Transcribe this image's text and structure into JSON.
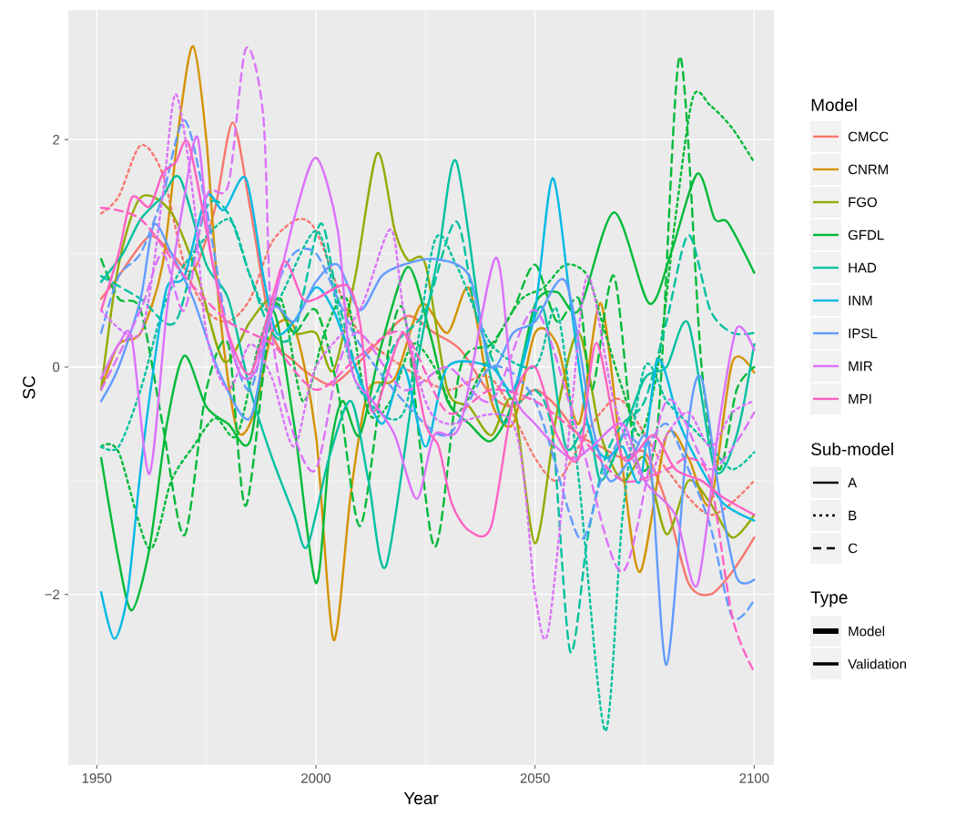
{
  "chart_data": {
    "type": "line",
    "xlabel": "Year",
    "ylabel": "SC",
    "legend_title": "Model",
    "legend": "right",
    "grid": true,
    "xlim": [
      1943.5,
      2104.5
    ],
    "ylim": [
      -3.5,
      3.14
    ],
    "xticks": [
      1950,
      2000,
      2050,
      2100
    ],
    "yticks": [
      {
        "value": -2,
        "label": "−2"
      },
      0,
      2
    ],
    "annotations": [
      "Sub-model",
      "A",
      "B",
      "C",
      "Type",
      "Model",
      "Validation"
    ],
    "series": [
      {
        "name": "CMCC",
        "color": "#F8766D",
        "line_style": "solid",
        "x": [
          1951,
          1955,
          1962,
          1967,
          1972,
          1977,
          1981,
          1985,
          1990,
          1995,
          2000,
          2004,
          2010,
          2015,
          2021,
          2027,
          2033,
          2040,
          2045,
          2050,
          2055,
          2060,
          2065,
          2070,
          2075,
          2080,
          2085,
          2090,
          2095,
          2100
        ],
        "values": [
          0.6,
          0.8,
          1.15,
          1.0,
          0.85,
          1.4,
          2.15,
          1.4,
          0.3,
          0.05,
          -0.1,
          -0.15,
          0.05,
          0.25,
          0.45,
          0.3,
          0.15,
          -0.25,
          -0.35,
          -0.2,
          -0.35,
          -0.6,
          -0.7,
          -0.8,
          -0.75,
          -1.2,
          -1.9,
          -2.0,
          -1.8,
          -1.5
        ]
      },
      {
        "color": "#F8766D",
        "line_style": "dotted",
        "x": [
          1951,
          1955,
          1960,
          1965,
          1970,
          1975,
          1980,
          1985,
          1990,
          1996,
          2000,
          2005,
          2010,
          2020,
          2030,
          2040,
          2050,
          2055,
          2060,
          2065,
          2070,
          2080,
          2090,
          2100
        ],
        "values": [
          1.35,
          1.5,
          1.95,
          1.7,
          0.9,
          0.5,
          0.4,
          0.6,
          1.1,
          1.3,
          1.2,
          0.7,
          0.3,
          0.0,
          -0.2,
          -0.1,
          -0.8,
          -1.0,
          -0.7,
          -0.4,
          -0.3,
          -0.9,
          -1.3,
          -1.0
        ]
      },
      {
        "name": "CNRM",
        "color": "#D39200",
        "line_style": "solid",
        "x": [
          1951,
          1955,
          1960,
          1965,
          1969,
          1972,
          1975,
          1978,
          1982,
          1986,
          1990,
          1995,
          2000,
          2004,
          2008,
          2012,
          2018,
          2024,
          2030,
          2035,
          2040,
          2045,
          2050,
          2055,
          2060,
          2065,
          2070,
          2074,
          2080,
          2085,
          2090,
          2095,
          2100
        ],
        "values": [
          -0.2,
          0.2,
          0.3,
          0.9,
          2.2,
          2.82,
          2.0,
          0.5,
          -0.55,
          -0.4,
          0.3,
          0.35,
          -0.6,
          -2.4,
          -1.1,
          -0.2,
          -0.1,
          0.55,
          0.3,
          0.69,
          -0.3,
          -0.5,
          0.3,
          0.2,
          -0.5,
          0.56,
          -0.9,
          -1.8,
          -0.6,
          -0.8,
          -1.2,
          0.04,
          -0.05
        ]
      },
      {
        "name": "FGO",
        "color": "#93AA00",
        "line_style": "solid",
        "x": [
          1951,
          1955,
          1960,
          1967,
          1973,
          1979,
          1985,
          1990,
          1995,
          2000,
          2004,
          2009,
          2014,
          2018,
          2021,
          2025,
          2030,
          2035,
          2040,
          2045,
          2050,
          2055,
          2060,
          2065,
          2070,
          2075,
          2080,
          2085,
          2090,
          2095,
          2100
        ],
        "values": [
          -0.2,
          0.9,
          1.49,
          1.36,
          0.8,
          0.05,
          0.4,
          0.6,
          0.3,
          0.3,
          -0.03,
          0.8,
          1.88,
          1.2,
          0.94,
          0.9,
          -0.2,
          -0.35,
          -0.6,
          -0.3,
          -1.55,
          -0.4,
          0.3,
          -0.6,
          -1.0,
          -0.8,
          -1.47,
          -1.0,
          -1.2,
          -1.5,
          -1.3
        ]
      },
      {
        "name": "GFDL",
        "color": "#00BA38",
        "line_style": "solid",
        "x": [
          1951,
          1955,
          1958,
          1962,
          1966,
          1970,
          1975,
          1980,
          1985,
          1990,
          1995,
          2000,
          2003,
          2006,
          2010,
          2015,
          2021,
          2026,
          2030,
          2035,
          2040,
          2045,
          2050,
          2055,
          2060,
          2068,
          2076,
          2081,
          2087,
          2091,
          2094,
          2100
        ],
        "values": [
          -0.8,
          -1.7,
          -2.14,
          -1.6,
          -0.5,
          0.1,
          -0.35,
          -0.5,
          -0.65,
          0.5,
          -0.5,
          -1.9,
          -0.8,
          -0.3,
          -0.6,
          0.2,
          0.88,
          0.3,
          -0.3,
          -0.5,
          -0.65,
          -0.3,
          0.55,
          0.66,
          0.5,
          1.36,
          0.56,
          1.0,
          1.7,
          1.3,
          1.27,
          0.83
        ]
      },
      {
        "color": "#00BA38",
        "line_style": "dotted",
        "x": [
          1951,
          1955,
          1962,
          1967,
          1972,
          1977,
          1982,
          1987,
          1992,
          1997,
          2002,
          2007,
          2012,
          2017,
          2022,
          2027,
          2032,
          2037,
          2042,
          2047,
          2052,
          2057,
          2062,
          2066,
          2070,
          2074,
          2078,
          2082,
          2086,
          2090,
          2095,
          2100
        ],
        "values": [
          -0.7,
          -0.75,
          -1.6,
          -1.0,
          -0.7,
          -0.45,
          -0.6,
          0.2,
          0.6,
          -0.3,
          0.3,
          0.6,
          -0.4,
          -0.3,
          0.2,
          0.0,
          -0.4,
          -0.1,
          0.3,
          0.6,
          0.7,
          0.9,
          0.8,
          0.3,
          -0.2,
          -0.6,
          0.0,
          1.3,
          2.37,
          2.3,
          2.1,
          1.8
        ]
      },
      {
        "color": "#00BA38",
        "line_style": "dashed",
        "x": [
          1951,
          1955,
          1960,
          1965,
          1970,
          1975,
          1980,
          1984,
          1990,
          1995,
          2000,
          2005,
          2010,
          2015,
          2020,
          2027,
          2033,
          2040,
          2045,
          2050,
          2055,
          2060,
          2063,
          2068,
          2073,
          2078,
          2083,
          2088,
          2092,
          2096,
          2100
        ],
        "values": [
          0.95,
          0.6,
          0.5,
          -0.5,
          -1.48,
          -0.2,
          0.2,
          -1.22,
          0.5,
          0.3,
          0.5,
          -0.2,
          -1.4,
          -0.2,
          0.5,
          -1.58,
          0.0,
          0.2,
          0.5,
          0.9,
          0.4,
          0.6,
          -0.2,
          0.8,
          -0.8,
          -0.5,
          2.73,
          0.0,
          -0.9,
          -0.2,
          0.0
        ]
      },
      {
        "name": "HAD",
        "color": "#00C19F",
        "line_style": "solid",
        "x": [
          1951,
          1956,
          1960,
          1965,
          1969,
          1975,
          1980,
          1985,
          1990,
          1995,
          1998,
          2003,
          2008,
          2012,
          2016,
          2023,
          2028,
          2032,
          2038,
          2043,
          2048,
          2052,
          2057,
          2062,
          2065,
          2070,
          2075,
          2080,
          2085,
          2091,
          2096,
          2100
        ],
        "values": [
          0.75,
          1.0,
          1.3,
          1.5,
          1.66,
          0.9,
          0.6,
          -0.2,
          -0.8,
          -1.3,
          -1.58,
          -0.8,
          -0.3,
          -1.0,
          -1.75,
          0.0,
          1.0,
          1.81,
          0.3,
          -0.5,
          0.2,
          0.5,
          -0.7,
          -0.5,
          -1.0,
          -0.6,
          -0.1,
          0.0,
          0.38,
          -0.9,
          -0.6,
          0.2
        ]
      },
      {
        "color": "#00C19F",
        "line_style": "dotted",
        "x": [
          1951,
          1955,
          1960,
          1965,
          1970,
          1980,
          1985,
          1990,
          2000,
          2005,
          2010,
          2020,
          2027,
          2032,
          2040,
          2050,
          2055,
          2060,
          2066,
          2070,
          2075,
          2080,
          2085,
          2090,
          2095,
          2100
        ],
        "values": [
          -0.7,
          -0.7,
          -0.2,
          0.5,
          0.9,
          1.3,
          0.8,
          0.5,
          1.2,
          0.5,
          -0.2,
          -0.4,
          1.1,
          0.9,
          0.2,
          0.0,
          0.5,
          -1.0,
          -3.2,
          -1.3,
          0.0,
          -0.3,
          -0.5,
          -0.7,
          -0.9,
          -0.75
        ]
      },
      {
        "color": "#00C19F",
        "line_style": "dashed",
        "x": [
          1951,
          1960,
          1968,
          1975,
          1980,
          1985,
          1990,
          1995,
          2001,
          2005,
          2012,
          2018,
          2025,
          2032,
          2037,
          2045,
          2050,
          2054,
          2058,
          2062,
          2066,
          2070,
          2075,
          2080,
          2085,
          2090,
          2095,
          2100
        ],
        "values": [
          0.8,
          0.6,
          0.4,
          1.4,
          1.35,
          0.8,
          0.3,
          0.3,
          1.26,
          0.6,
          -0.3,
          0.2,
          0.5,
          1.28,
          0.4,
          -0.3,
          -0.2,
          -0.6,
          -2.5,
          -1.5,
          -0.8,
          -0.5,
          -0.3,
          0.4,
          1.16,
          0.5,
          0.3,
          0.3
        ]
      },
      {
        "name": "INM",
        "color": "#00B9E3",
        "line_style": "solid",
        "x": [
          1951,
          1954,
          1957,
          1960,
          1963,
          1966,
          1970,
          1975,
          1979,
          1984,
          1988,
          1991,
          1995,
          2000,
          2004,
          2008,
          2015,
          2020,
          2025,
          2030,
          2040,
          2045,
          2050,
          2054,
          2058,
          2062,
          2066,
          2070,
          2074,
          2078,
          2083,
          2088,
          2093,
          2100
        ],
        "values": [
          -1.98,
          -2.39,
          -2.0,
          -0.9,
          0.0,
          0.7,
          0.8,
          1.5,
          1.38,
          1.66,
          0.8,
          0.3,
          0.4,
          0.7,
          0.5,
          0.1,
          -0.5,
          0.0,
          -0.7,
          0.0,
          0.0,
          -0.2,
          0.5,
          1.66,
          0.6,
          -0.5,
          -0.8,
          -0.7,
          -1.0,
          0.06,
          -0.5,
          -0.9,
          -1.2,
          -1.35
        ]
      },
      {
        "name": "IPSL",
        "color": "#619CFF",
        "line_style": "solid",
        "x": [
          1951,
          1955,
          1960,
          1963,
          1967,
          1972,
          1978,
          1985,
          1990,
          1995,
          2000,
          2005,
          2010,
          2015,
          2020,
          2027,
          2035,
          2040,
          2045,
          2050,
          2057,
          2063,
          2067,
          2072,
          2076,
          2080,
          2085,
          2088,
          2092,
          2096,
          2100
        ],
        "values": [
          -0.3,
          0.0,
          0.6,
          1.25,
          1.0,
          0.6,
          -0.05,
          -0.45,
          0.5,
          0.4,
          0.75,
          0.9,
          0.5,
          0.8,
          0.9,
          0.95,
          0.8,
          0.0,
          0.3,
          0.4,
          0.75,
          -0.5,
          -1.0,
          -0.8,
          -0.7,
          -2.62,
          -0.5,
          -0.1,
          -1.1,
          -1.85,
          -1.87
        ]
      },
      {
        "color": "#619CFF",
        "line_style": "dashed",
        "x": [
          1951,
          1955,
          1960,
          1965,
          1970,
          1975,
          1980,
          1985,
          1990,
          1995,
          2000,
          2005,
          2010,
          2020,
          2030,
          2040,
          2050,
          2060,
          2065,
          2070,
          2075,
          2080,
          2085,
          2090,
          2095,
          2100
        ],
        "values": [
          0.3,
          0.8,
          1.0,
          1.5,
          2.17,
          1.4,
          0.3,
          -0.2,
          0.6,
          1.0,
          1.0,
          0.6,
          0.2,
          -0.3,
          -0.6,
          0.0,
          -0.3,
          -1.5,
          -1.0,
          -0.6,
          -0.7,
          -0.5,
          -0.9,
          -1.4,
          -2.2,
          -2.05
        ]
      },
      {
        "name": "MIR",
        "color": "#DB72FB",
        "line_style": "solid",
        "x": [
          1951,
          1955,
          1958,
          1962,
          1966,
          1970,
          1973,
          1976,
          1982,
          1986,
          1990,
          1995,
          2000,
          2005,
          2008,
          2013,
          2018,
          2023,
          2027,
          2033,
          2041,
          2045,
          2050,
          2058,
          2063,
          2070,
          2075,
          2082,
          2087,
          2092,
          2096,
          2100
        ],
        "values": [
          -0.1,
          0.2,
          0.25,
          -0.94,
          0.5,
          1.5,
          2.02,
          1.0,
          0.0,
          -0.05,
          0.5,
          1.3,
          1.84,
          1.2,
          0.0,
          -0.3,
          -0.6,
          -1.16,
          -0.6,
          -0.5,
          0.96,
          -0.2,
          -0.5,
          -0.8,
          -0.7,
          -0.5,
          -1.0,
          -1.3,
          -1.92,
          -0.5,
          0.34,
          0.15
        ]
      },
      {
        "color": "#DB72FB",
        "line_style": "dotted",
        "x": [
          1951,
          1960,
          1965,
          1968,
          1972,
          1975,
          1980,
          1985,
          1990,
          1995,
          2000,
          2010,
          2017,
          2020,
          2025,
          2030,
          2045,
          2050,
          2053,
          2058,
          2062,
          2068,
          2075,
          2080,
          2085,
          2090,
          2095,
          2100
        ],
        "values": [
          0.5,
          0.3,
          1.5,
          2.4,
          1.5,
          0.3,
          -0.2,
          0.2,
          -0.1,
          -0.7,
          0.0,
          0.5,
          1.21,
          0.5,
          -0.3,
          -0.5,
          -0.5,
          -2.0,
          -2.32,
          -0.5,
          0.8,
          -0.3,
          -1.0,
          -0.6,
          -0.4,
          -0.7,
          -0.4,
          -0.3
        ]
      },
      {
        "color": "#DB72FB",
        "line_style": "dashed",
        "x": [
          1951,
          1960,
          1965,
          1970,
          1975,
          1980,
          1984,
          1988,
          1990,
          1995,
          2000,
          2005,
          2010,
          2020,
          2030,
          2040,
          2050,
          2060,
          2070,
          2080,
          2090,
          2100
        ],
        "values": [
          -0.2,
          0.5,
          1.0,
          0.5,
          1.5,
          1.6,
          2.8,
          2.2,
          0.3,
          -0.6,
          -0.9,
          0.0,
          0.3,
          -0.2,
          0.0,
          -0.3,
          0.5,
          -0.6,
          -1.8,
          -0.3,
          -0.9,
          -0.4
        ]
      },
      {
        "name": "MPI",
        "color": "#FF61C3",
        "line_style": "solid",
        "x": [
          1951,
          1955,
          1958,
          1962,
          1965,
          1968,
          1971,
          1976,
          1980,
          1985,
          1990,
          1993,
          1997,
          2000,
          2007,
          2010,
          2013,
          2020,
          2025,
          2028,
          2031,
          2035,
          2040,
          2045,
          2050,
          2055,
          2060,
          2064,
          2070,
          2077,
          2082,
          2088,
          2093,
          2100
        ],
        "values": [
          0.5,
          1.0,
          1.49,
          1.41,
          1.7,
          1.8,
          1.96,
          1.0,
          0.3,
          -0.06,
          0.6,
          0.93,
          0.6,
          0.6,
          0.72,
          0.4,
          -0.4,
          0.3,
          -0.5,
          -0.7,
          -1.2,
          -1.44,
          -1.4,
          -0.3,
          0.0,
          -0.6,
          -0.8,
          0.21,
          -0.8,
          -0.6,
          -0.9,
          -1.0,
          -1.15,
          -1.3
        ]
      },
      {
        "color": "#FF61C3",
        "line_style": "dashed",
        "x": [
          1951,
          1960,
          1970,
          1980,
          1990,
          2000,
          2010,
          2020,
          2030,
          2040,
          2050,
          2060,
          2070,
          2080,
          2085,
          2090,
          2095,
          2100
        ],
        "values": [
          1.4,
          1.3,
          0.8,
          0.4,
          0.2,
          -0.2,
          0.1,
          0.3,
          -0.4,
          -0.2,
          -0.3,
          -0.6,
          -1.0,
          -0.9,
          -0.8,
          -1.0,
          -2.2,
          -2.68
        ]
      }
    ]
  }
}
